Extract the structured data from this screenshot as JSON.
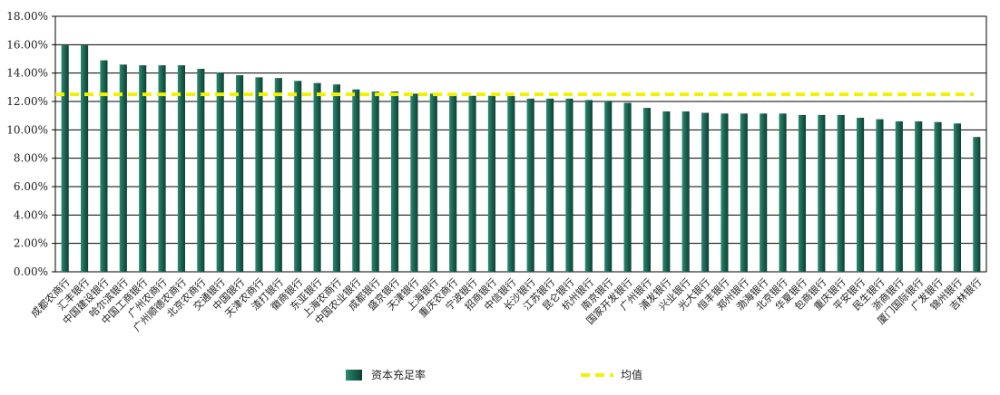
{
  "chart_data": {
    "type": "bar",
    "title": "",
    "xlabel": "",
    "ylabel": "",
    "ylim": [
      0,
      18
    ],
    "ytick_step": 2,
    "y_format": "percent",
    "grid": "horizontal",
    "legend_position": "bottom",
    "categories": [
      "成都农商行",
      "汇丰银行",
      "中国建设银行",
      "哈尔滨银行",
      "中国工商银行",
      "广州农商行",
      "广州顺德农商行",
      "北京农商行",
      "交通银行",
      "中国银行",
      "天津农商行",
      "渣打银行",
      "徽商银行",
      "东亚银行",
      "上海农商行",
      "中国农业银行",
      "成都银行",
      "盛京银行",
      "天津银行",
      "上海银行",
      "重庆农商行",
      "宁波银行",
      "招商银行",
      "中信银行",
      "长沙银行",
      "江苏银行",
      "昆仑银行",
      "杭州银行",
      "南京银行",
      "国家开发银行",
      "广州银行",
      "浦发银行",
      "兴业银行",
      "光大银行",
      "恒丰银行",
      "郑州银行",
      "渤海银行",
      "北京银行",
      "华夏银行",
      "包商银行",
      "重庆银行",
      "平安银行",
      "民生银行",
      "浙商银行",
      "厦门国际银行",
      "广发银行",
      "锦州银行",
      "吉林银行"
    ],
    "series": [
      {
        "name": "资本充足率",
        "type": "bar",
        "color": "#1f6e5a",
        "values": [
          15.95,
          15.95,
          14.9,
          14.6,
          14.55,
          14.55,
          14.55,
          14.3,
          14.05,
          13.85,
          13.7,
          13.65,
          13.45,
          13.3,
          13.2,
          12.85,
          12.7,
          12.7,
          12.55,
          12.55,
          12.55,
          12.4,
          12.4,
          12.4,
          12.2,
          12.2,
          12.2,
          12.1,
          12.05,
          11.9,
          11.55,
          11.3,
          11.3,
          11.2,
          11.15,
          11.15,
          11.15,
          11.15,
          11.05,
          11.05,
          11.05,
          10.85,
          10.75,
          10.6,
          10.6,
          10.55,
          10.45,
          9.5
        ]
      },
      {
        "name": "均值",
        "type": "line",
        "style": "dashed",
        "color": "#f2f200",
        "value": 12.5
      }
    ]
  }
}
